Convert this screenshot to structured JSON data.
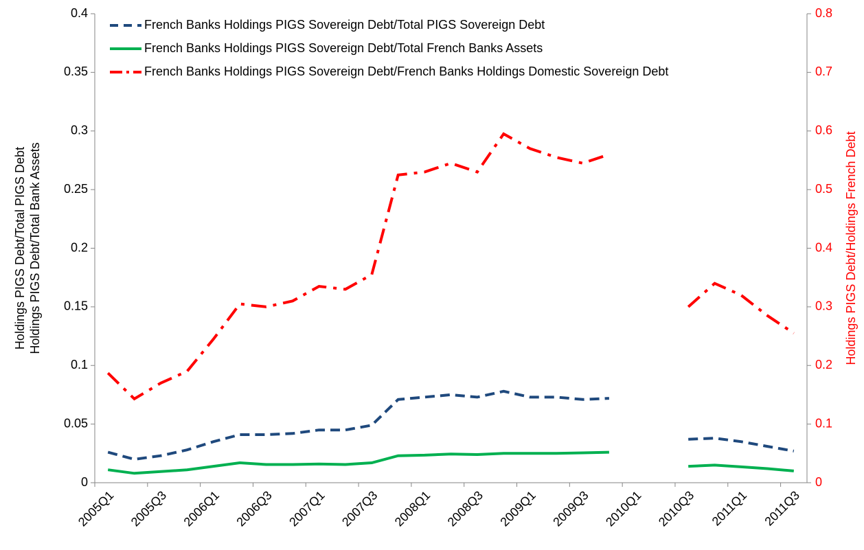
{
  "chart_data": {
    "type": "line",
    "categories": [
      "2005Q1",
      null,
      "2005Q3",
      null,
      "2006Q1",
      null,
      "2006Q3",
      null,
      "2007Q1",
      null,
      "2007Q3",
      null,
      "2008Q1",
      null,
      "2008Q3",
      null,
      "2009Q1",
      null,
      "2009Q3",
      null,
      "2010Q1",
      null,
      "2010Q3",
      null,
      "2011Q1",
      null,
      "2011Q3"
    ],
    "ylabel": [
      "Holdings PIGS Debt/Total PIGS Debt",
      "Holdings PIGS Debt/Total Bank Assets"
    ],
    "y2label": "Holdings PIGS Debt/Holdings French Debt",
    "ylim": [
      0,
      0.4
    ],
    "yticks": [
      0,
      0.05,
      0.1,
      0.15,
      0.2,
      0.25,
      0.3,
      0.35,
      0.4
    ],
    "y2lim": [
      0,
      0.8
    ],
    "y2ticks": [
      0,
      0.1,
      0.2,
      0.3,
      0.4,
      0.5,
      0.6,
      0.7,
      0.8
    ],
    "y2color": "#ff0000",
    "legend": "top-left",
    "series": [
      {
        "name": "French Banks Holdings PIGS Sovereign Debt/Total PIGS Sovereign Debt",
        "color": "#1f497d",
        "dash": "dashed",
        "values": [
          0.026,
          0.02,
          0.023,
          0.028,
          0.035,
          0.041,
          0.041,
          0.042,
          0.045,
          0.045,
          0.049,
          0.071,
          0.073,
          0.075,
          0.073,
          0.078,
          0.073,
          0.073,
          0.071,
          0.072,
          null,
          null,
          0.037,
          0.038,
          0.035,
          0.031,
          0.027
        ]
      },
      {
        "name": "French Banks Holdings PIGS Sovereign Debt/Total French Banks Assets",
        "color": "#00b050",
        "dash": "solid",
        "values": [
          0.011,
          0.008,
          0.0095,
          0.011,
          0.014,
          0.017,
          0.0155,
          0.0155,
          0.016,
          0.0155,
          0.017,
          0.023,
          0.0235,
          0.0245,
          0.024,
          0.025,
          0.025,
          0.025,
          0.0255,
          0.026,
          null,
          null,
          0.014,
          0.015,
          0.0135,
          0.012,
          0.01
        ]
      },
      {
        "name": "French Banks Holdings PIGS Sovereign Debt/French Banks Holdings Domestic Sovereign Debt",
        "color": "#ff0000",
        "dash": "dashdot",
        "axis": "y2",
        "values": [
          0.187,
          0.143,
          0.17,
          0.19,
          0.245,
          0.305,
          0.3,
          0.31,
          0.335,
          0.33,
          0.355,
          0.525,
          0.53,
          0.545,
          0.53,
          0.595,
          0.57,
          0.555,
          0.545,
          0.56,
          null,
          null,
          0.3,
          0.34,
          0.32,
          0.285,
          0.255
        ]
      }
    ]
  }
}
